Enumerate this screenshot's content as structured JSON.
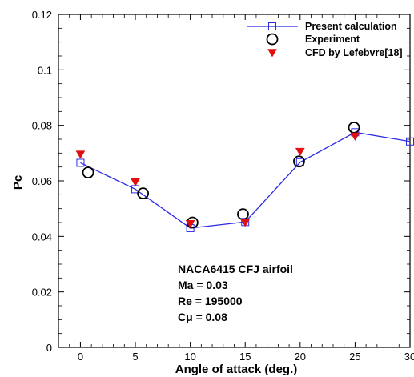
{
  "chart_data": {
    "type": "scatter",
    "xlabel": "Angle of attack (deg.)",
    "ylabel": "Pc",
    "xlim": [
      -2,
      30
    ],
    "ylim": [
      0,
      0.12
    ],
    "xticks": [
      0,
      5,
      10,
      15,
      20,
      25,
      30
    ],
    "yticks": [
      0,
      0.02,
      0.04,
      0.06,
      0.08,
      0.1,
      0.12
    ],
    "xtick_labels": [
      "0",
      "5",
      "10",
      "15",
      "20",
      "25",
      "30"
    ],
    "ytick_labels": [
      "0",
      "0.02",
      "0.04",
      "0.06",
      "0.08",
      "0.1",
      "0.12"
    ],
    "grid": false,
    "legend_position": "top-right",
    "series": [
      {
        "name": "Present calculation",
        "style": "line-open-square",
        "color": "#2a2ae6",
        "x": [
          0,
          5,
          10,
          15,
          20,
          25,
          30
        ],
        "y": [
          0.0665,
          0.057,
          0.043,
          0.0452,
          0.0667,
          0.0775,
          0.0742
        ]
      },
      {
        "name": "Experiment",
        "style": "open-circle",
        "color": "#000000",
        "x": [
          0.7,
          5.7,
          10.2,
          14.8,
          19.9,
          24.9
        ],
        "y": [
          0.063,
          0.0555,
          0.045,
          0.048,
          0.067,
          0.0792
        ]
      },
      {
        "name": "CFD by Lefebvre[18]",
        "style": "filled-down-triangle",
        "color": "#e01010",
        "x": [
          0,
          5,
          10,
          15,
          20,
          25
        ],
        "y": [
          0.0695,
          0.0595,
          0.0445,
          0.045,
          0.0705,
          0.076
        ]
      }
    ],
    "annotations": [
      "NACA6415 CFJ airfoil",
      "Ma = 0.03",
      "Re = 195000",
      "Cμ = 0.08"
    ]
  }
}
